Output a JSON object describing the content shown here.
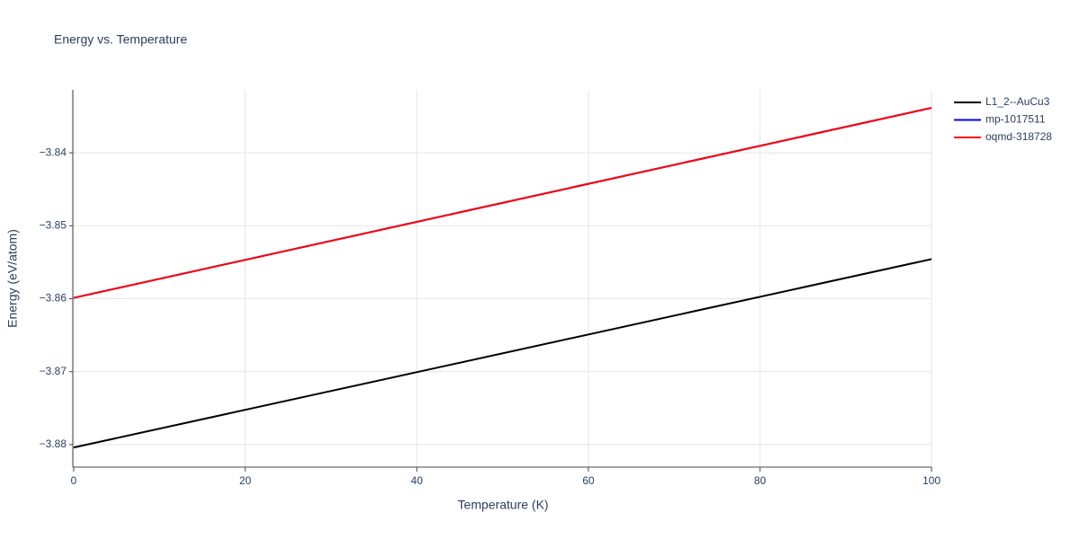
{
  "chart_data": {
    "type": "line",
    "title": "Energy vs. Temperature",
    "xlabel": "Temperature (K)",
    "ylabel": "Energy (eV/atom)",
    "x": [
      0,
      100
    ],
    "series": [
      {
        "name": "L1_2--AuCu3",
        "color": "#000000",
        "values": [
          -3.8804,
          -3.85457
        ]
      },
      {
        "name": "mp-1017511",
        "color": "#0000ff",
        "values": [
          -3.85988,
          -3.83383
        ]
      },
      {
        "name": "oqmd-318728",
        "color": "#ff0000",
        "values": [
          -3.85988,
          -3.83383
        ]
      }
    ],
    "xlim": [
      0,
      100
    ],
    "xticks": [
      0,
      20,
      40,
      60,
      80,
      100
    ],
    "ylim": [
      -3.88309,
      -3.83136
    ],
    "yticks": [
      {
        "value": -3.88,
        "label": "−3.88"
      },
      {
        "value": -3.87,
        "label": "−3.87"
      },
      {
        "value": -3.86,
        "label": "−3.86"
      },
      {
        "value": -3.85,
        "label": "−3.85"
      },
      {
        "value": -3.84,
        "label": "−3.84"
      }
    ],
    "grid": true,
    "legend": "top-right"
  }
}
